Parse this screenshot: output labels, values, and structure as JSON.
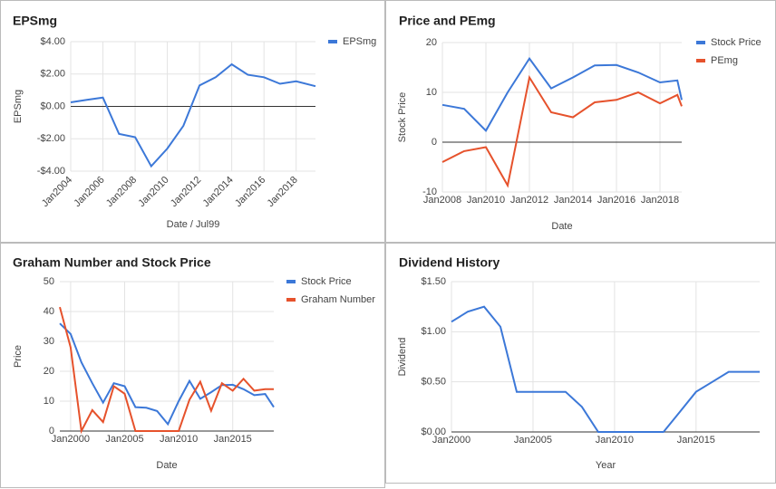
{
  "chart_data": [
    {
      "type": "line",
      "title": "EPSmg",
      "x_label": "Date / Jul99",
      "y_label": "EPSmg",
      "legend": "top-right",
      "xlim": [
        2004,
        2019.2
      ],
      "xticks": [
        {
          "value": 2004,
          "label": "Jan2004"
        },
        {
          "value": 2006,
          "label": "Jan2006"
        },
        {
          "value": 2008,
          "label": "Jan2008"
        },
        {
          "value": 2010,
          "label": "Jan2010"
        },
        {
          "value": 2012,
          "label": "Jan2012"
        },
        {
          "value": 2014,
          "label": "Jan2014"
        },
        {
          "value": 2016,
          "label": "Jan2016"
        },
        {
          "value": 2018,
          "label": "Jan2018"
        }
      ],
      "ylim": [
        -4,
        4
      ],
      "yticks": [
        {
          "value": 4,
          "label": "$4.00"
        },
        {
          "value": 2,
          "label": "$2.00"
        },
        {
          "value": 0,
          "label": "$0.00"
        },
        {
          "value": -2,
          "label": "-$2.00"
        },
        {
          "value": -4,
          "label": "-$4.00"
        }
      ],
      "series": [
        {
          "name": "EPSmg",
          "color": "#3c78d8",
          "x": [
            2004,
            2005,
            2006,
            2007,
            2008,
            2009,
            2010,
            2011,
            2012,
            2013,
            2014,
            2015,
            2016,
            2017,
            2018,
            2019.2
          ],
          "values": [
            0.25,
            0.4,
            0.55,
            -1.7,
            -1.9,
            -3.7,
            -2.6,
            -1.2,
            1.3,
            1.8,
            2.6,
            1.95,
            1.8,
            1.4,
            1.55,
            1.25
          ]
        }
      ]
    },
    {
      "type": "line",
      "title": "Price and PEmg",
      "x_label": "Date",
      "y_label": "Stock Price",
      "legend": "top-right",
      "xlim": [
        2008,
        2019
      ],
      "xticks": [
        {
          "value": 2008,
          "label": "Jan2008"
        },
        {
          "value": 2010,
          "label": "Jan2010"
        },
        {
          "value": 2012,
          "label": "Jan2012"
        },
        {
          "value": 2014,
          "label": "Jan2014"
        },
        {
          "value": 2016,
          "label": "Jan2016"
        },
        {
          "value": 2018,
          "label": "Jan2018"
        }
      ],
      "ylim": [
        -10,
        20
      ],
      "yticks": [
        -10,
        0,
        10,
        20
      ],
      "series": [
        {
          "name": "Stock Price",
          "color": "#3c78d8",
          "x": [
            2008,
            2009,
            2010,
            2011,
            2012,
            2013,
            2014,
            2015,
            2016,
            2017,
            2018,
            2018.8,
            2019
          ],
          "values": [
            7.5,
            6.7,
            2.3,
            10,
            16.8,
            10.8,
            13,
            15.4,
            15.5,
            14,
            12,
            12.4,
            8.5
          ]
        },
        {
          "name": "PEmg",
          "color": "#e6522c",
          "x": [
            2008,
            2009,
            2010,
            2011,
            2012,
            2013,
            2014,
            2015,
            2016,
            2017,
            2018,
            2018.8,
            2019
          ],
          "values": [
            -4,
            -1.8,
            -1,
            -8.7,
            13,
            6,
            5,
            8,
            8.5,
            10,
            7.8,
            9.5,
            7.2
          ]
        }
      ]
    },
    {
      "type": "line",
      "title": "Graham Number and Stock Price",
      "x_label": "Date",
      "y_label": "Price",
      "legend": "top-right",
      "xlim": [
        1999,
        2018.8
      ],
      "xticks": [
        {
          "value": 2000,
          "label": "Jan2000"
        },
        {
          "value": 2005,
          "label": "Jan2005"
        },
        {
          "value": 2010,
          "label": "Jan2010"
        },
        {
          "value": 2015,
          "label": "Jan2015"
        }
      ],
      "ylim": [
        0,
        50
      ],
      "yticks": [
        0,
        10,
        20,
        30,
        40,
        50
      ],
      "series": [
        {
          "name": "Stock Price",
          "color": "#3c78d8",
          "x": [
            1999,
            2000,
            2001,
            2002,
            2003,
            2004,
            2005,
            2006,
            2007,
            2008,
            2009,
            2010,
            2011,
            2012,
            2013,
            2014,
            2015,
            2016,
            2017,
            2018,
            2018.8
          ],
          "values": [
            36,
            32.5,
            23,
            16,
            9.5,
            16,
            15,
            8,
            7.8,
            6.7,
            2.3,
            10,
            16.8,
            10.8,
            13,
            15.4,
            15.5,
            14,
            12,
            12.4,
            8
          ]
        },
        {
          "name": "Graham Number",
          "color": "#e6522c",
          "x": [
            1999,
            2000,
            2001,
            2002,
            2003,
            2004,
            2005,
            2006,
            2007,
            2008,
            2009,
            2010,
            2011,
            2012,
            2013,
            2014,
            2015,
            2016,
            2017,
            2018,
            2018.8
          ],
          "values": [
            41.5,
            28,
            0,
            7,
            3,
            15,
            12.5,
            0,
            0,
            0,
            0,
            0,
            10.5,
            16.5,
            6.8,
            16,
            13.5,
            17.5,
            13.5,
            14,
            14
          ]
        }
      ]
    },
    {
      "type": "line",
      "title": "Dividend History",
      "x_label": "Year",
      "y_label": "Dividend",
      "xlim": [
        2000,
        2018.9
      ],
      "xticks": [
        {
          "value": 2000,
          "label": "Jan2000"
        },
        {
          "value": 2005,
          "label": "Jan2005"
        },
        {
          "value": 2010,
          "label": "Jan2010"
        },
        {
          "value": 2015,
          "label": "Jan2015"
        }
      ],
      "ylim": [
        0,
        1.5
      ],
      "yticks": [
        {
          "value": 0,
          "label": "$0.00"
        },
        {
          "value": 0.5,
          "label": "$0.50"
        },
        {
          "value": 1,
          "label": "$1.00"
        },
        {
          "value": 1.5,
          "label": "$1.50"
        }
      ],
      "series": [
        {
          "name": "Dividend",
          "color": "#3c78d8",
          "x": [
            2000,
            2001,
            2002,
            2003,
            2004,
            2005,
            2006,
            2007,
            2008,
            2009,
            2010,
            2011,
            2012,
            2013,
            2014,
            2015,
            2016,
            2017,
            2018,
            2018.9
          ],
          "values": [
            1.1,
            1.2,
            1.25,
            1.05,
            0.4,
            0.4,
            0.4,
            0.4,
            0.25,
            0,
            0,
            0,
            0,
            0,
            0.2,
            0.4,
            0.5,
            0.6,
            0.6,
            0.6
          ]
        }
      ]
    }
  ]
}
